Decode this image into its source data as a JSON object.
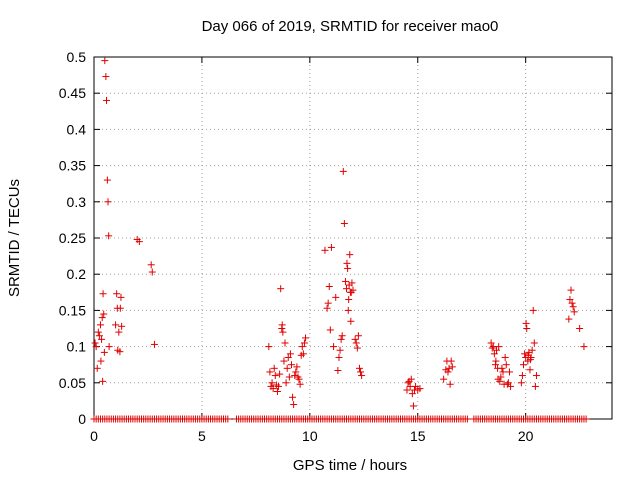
{
  "chart_data": {
    "type": "scatter",
    "title": "Day 066 of 2019, SRMTID for receiver mao0",
    "xlabel": "GPS time / hours",
    "ylabel": "SRMTID / TECUs",
    "xlim": [
      0,
      24
    ],
    "ylim": [
      0,
      0.5
    ],
    "xticks": [
      0,
      5,
      10,
      15,
      20
    ],
    "xtick_labels": [
      "0",
      "5",
      "10",
      "15",
      "20"
    ],
    "yticks": [
      0,
      0.05,
      0.1,
      0.15,
      0.2,
      0.25,
      0.3,
      0.35,
      0.4,
      0.45,
      0.5
    ],
    "ytick_labels": [
      "0",
      "0.05",
      "0.1",
      "0.15",
      "0.2",
      "0.25",
      "0.3",
      "0.35",
      "0.4",
      "0.45",
      "0.5"
    ],
    "grid": true,
    "marker": "+",
    "color": "#e00000",
    "series": [
      {
        "name": "SRMTID",
        "points": [
          [
            0.05,
            0.105
          ],
          [
            0.1,
            0.1
          ],
          [
            0.15,
            0.07
          ],
          [
            0.2,
            0.12
          ],
          [
            0.25,
            0.115
          ],
          [
            0.3,
            0.13
          ],
          [
            0.32,
            0.08
          ],
          [
            0.35,
            0.11
          ],
          [
            0.38,
            0.14
          ],
          [
            0.4,
            0.052
          ],
          [
            0.42,
            0.173
          ],
          [
            0.45,
            0.145
          ],
          [
            0.48,
            0.092
          ],
          [
            0.5,
            0.495
          ],
          [
            0.55,
            0.473
          ],
          [
            0.58,
            0.44
          ],
          [
            0.62,
            0.33
          ],
          [
            0.65,
            0.3
          ],
          [
            0.68,
            0.253
          ],
          [
            0.7,
            0.1
          ],
          [
            1.0,
            0.13
          ],
          [
            1.05,
            0.173
          ],
          [
            1.08,
            0.153
          ],
          [
            1.1,
            0.095
          ],
          [
            1.15,
            0.12
          ],
          [
            1.2,
            0.093
          ],
          [
            1.22,
            0.153
          ],
          [
            1.25,
            0.168
          ],
          [
            1.28,
            0.128
          ],
          [
            2.0,
            0.248
          ],
          [
            2.1,
            0.245
          ],
          [
            2.65,
            0.213
          ],
          [
            2.7,
            0.203
          ],
          [
            2.8,
            0.103
          ],
          [
            8.1,
            0.1
          ],
          [
            8.15,
            0.065
          ],
          [
            8.2,
            0.045
          ],
          [
            8.25,
            0.05
          ],
          [
            8.3,
            0.042
          ],
          [
            8.35,
            0.07
          ],
          [
            8.4,
            0.06
          ],
          [
            8.45,
            0.047
          ],
          [
            8.5,
            0.038
          ],
          [
            8.55,
            0.045
          ],
          [
            8.6,
            0.062
          ],
          [
            8.65,
            0.18
          ],
          [
            8.7,
            0.125
          ],
          [
            8.72,
            0.13
          ],
          [
            8.75,
            0.12
          ],
          [
            8.8,
            0.08
          ],
          [
            8.85,
            0.105
          ],
          [
            8.9,
            0.05
          ],
          [
            8.95,
            0.07
          ],
          [
            9.0,
            0.085
          ],
          [
            9.05,
            0.058
          ],
          [
            9.1,
            0.09
          ],
          [
            9.15,
            0.075
          ],
          [
            9.2,
            0.03
          ],
          [
            9.25,
            0.02
          ],
          [
            9.3,
            0.06
          ],
          [
            9.35,
            0.065
          ],
          [
            9.4,
            0.072
          ],
          [
            9.45,
            0.058
          ],
          [
            9.5,
            0.055
          ],
          [
            9.55,
            0.048
          ],
          [
            9.6,
            0.088
          ],
          [
            9.65,
            0.1
          ],
          [
            9.7,
            0.09
          ],
          [
            9.75,
            0.105
          ],
          [
            9.8,
            0.112
          ],
          [
            10.7,
            0.233
          ],
          [
            10.8,
            0.153
          ],
          [
            10.85,
            0.16
          ],
          [
            10.9,
            0.183
          ],
          [
            10.95,
            0.123
          ],
          [
            11.0,
            0.237
          ],
          [
            11.1,
            0.1
          ],
          [
            11.2,
            0.168
          ],
          [
            11.3,
            0.067
          ],
          [
            11.35,
            0.085
          ],
          [
            11.4,
            0.095
          ],
          [
            11.45,
            0.11
          ],
          [
            11.5,
            0.115
          ],
          [
            11.55,
            0.342
          ],
          [
            11.6,
            0.27
          ],
          [
            11.65,
            0.19
          ],
          [
            11.7,
            0.18
          ],
          [
            11.72,
            0.215
          ],
          [
            11.75,
            0.208
          ],
          [
            11.78,
            0.15
          ],
          [
            11.8,
            0.165
          ],
          [
            11.82,
            0.185
          ],
          [
            11.85,
            0.227
          ],
          [
            11.88,
            0.175
          ],
          [
            11.9,
            0.135
          ],
          [
            11.92,
            0.175
          ],
          [
            11.95,
            0.188
          ],
          [
            12.0,
            0.178
          ],
          [
            12.1,
            0.11
          ],
          [
            12.15,
            0.105
          ],
          [
            12.2,
            0.098
          ],
          [
            12.25,
            0.115
          ],
          [
            12.3,
            0.07
          ],
          [
            12.35,
            0.065
          ],
          [
            12.4,
            0.06
          ],
          [
            14.5,
            0.04
          ],
          [
            14.55,
            0.05
          ],
          [
            14.6,
            0.052
          ],
          [
            14.65,
            0.045
          ],
          [
            14.7,
            0.055
          ],
          [
            14.75,
            0.035
          ],
          [
            14.8,
            0.018
          ],
          [
            14.85,
            0.04
          ],
          [
            14.9,
            0.045
          ],
          [
            15.0,
            0.04
          ],
          [
            15.1,
            0.042
          ],
          [
            16.2,
            0.055
          ],
          [
            16.3,
            0.068
          ],
          [
            16.35,
            0.08
          ],
          [
            16.4,
            0.065
          ],
          [
            16.45,
            0.07
          ],
          [
            16.5,
            0.048
          ],
          [
            16.55,
            0.08
          ],
          [
            16.6,
            0.072
          ],
          [
            18.4,
            0.105
          ],
          [
            18.45,
            0.098
          ],
          [
            18.5,
            0.1
          ],
          [
            18.55,
            0.09
          ],
          [
            18.6,
            0.075
          ],
          [
            18.62,
            0.08
          ],
          [
            18.65,
            0.095
          ],
          [
            18.7,
            0.07
          ],
          [
            18.72,
            0.055
          ],
          [
            18.75,
            0.1
          ],
          [
            18.8,
            0.052
          ],
          [
            18.85,
            0.058
          ],
          [
            18.9,
            0.07
          ],
          [
            18.95,
            0.065
          ],
          [
            19.0,
            0.048
          ],
          [
            19.05,
            0.085
          ],
          [
            19.1,
            0.075
          ],
          [
            19.15,
            0.048
          ],
          [
            19.2,
            0.05
          ],
          [
            19.25,
            0.065
          ],
          [
            19.3,
            0.045
          ],
          [
            19.8,
            0.05
          ],
          [
            19.85,
            0.06
          ],
          [
            19.9,
            0.075
          ],
          [
            19.95,
            0.09
          ],
          [
            20.0,
            0.085
          ],
          [
            20.02,
            0.132
          ],
          [
            20.05,
            0.125
          ],
          [
            20.1,
            0.08
          ],
          [
            20.12,
            0.088
          ],
          [
            20.15,
            0.092
          ],
          [
            20.2,
            0.068
          ],
          [
            20.22,
            0.082
          ],
          [
            20.25,
            0.085
          ],
          [
            20.3,
            0.095
          ],
          [
            20.35,
            0.15
          ],
          [
            20.4,
            0.105
          ],
          [
            20.45,
            0.045
          ],
          [
            20.5,
            0.06
          ],
          [
            22.0,
            0.138
          ],
          [
            22.05,
            0.165
          ],
          [
            22.1,
            0.178
          ],
          [
            22.15,
            0.16
          ],
          [
            22.2,
            0.155
          ],
          [
            22.25,
            0.148
          ],
          [
            22.5,
            0.125
          ],
          [
            22.7,
            0.1
          ]
        ],
        "zero_segments": [
          [
            0,
            6.2
          ],
          [
            6.6,
            9.8
          ],
          [
            9.9,
            17.3
          ],
          [
            17.6,
            22.8
          ]
        ]
      }
    ]
  }
}
